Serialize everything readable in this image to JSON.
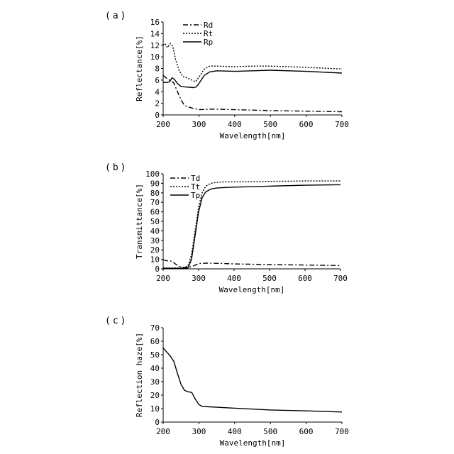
{
  "chart_data": [
    {
      "panel_label": "(a)",
      "type": "line",
      "xlabel": "Wavelength[nm]",
      "ylabel": "Reflectance[%]",
      "xlim": [
        200,
        700
      ],
      "ylim": [
        0,
        16
      ],
      "xticks": [
        200,
        300,
        400,
        500,
        600,
        700
      ],
      "yticks": [
        0,
        2,
        4,
        6,
        8,
        10,
        12,
        14,
        16
      ],
      "grid": false,
      "legend_position": "top-center",
      "series": [
        {
          "name": "Rd",
          "style": "dashdot",
          "x": [
            200,
            210,
            220,
            230,
            240,
            250,
            260,
            280,
            300,
            340,
            400,
            500,
            600,
            700
          ],
          "y": [
            6.8,
            6.3,
            5.9,
            5.5,
            4.0,
            2.6,
            1.6,
            1.2,
            0.9,
            1.0,
            0.9,
            0.75,
            0.65,
            0.55
          ]
        },
        {
          "name": "Rt",
          "style": "dotted",
          "x": [
            200,
            205,
            212,
            220,
            227,
            235,
            245,
            255,
            270,
            290,
            300,
            315,
            330,
            350,
            400,
            450,
            500,
            600,
            700
          ],
          "y": [
            12.0,
            12.3,
            11.6,
            12.3,
            11.8,
            9.5,
            7.6,
            6.6,
            6.3,
            5.7,
            6.5,
            7.9,
            8.4,
            8.4,
            8.3,
            8.4,
            8.4,
            8.2,
            7.9
          ]
        },
        {
          "name": "Rp",
          "style": "solid",
          "x": [
            200,
            210,
            218,
            225,
            232,
            240,
            250,
            265,
            285,
            292,
            300,
            315,
            330,
            350,
            400,
            450,
            500,
            600,
            700
          ],
          "y": [
            5.6,
            5.6,
            5.7,
            6.4,
            6.1,
            5.4,
            4.9,
            4.8,
            4.7,
            4.8,
            5.4,
            6.8,
            7.4,
            7.6,
            7.5,
            7.6,
            7.7,
            7.5,
            7.2
          ]
        }
      ]
    },
    {
      "panel_label": "(b)",
      "type": "line",
      "xlabel": "Wavelength[nm]",
      "ylabel": "Transmittance[%]",
      "xlim": [
        200,
        700
      ],
      "ylim": [
        0,
        100
      ],
      "xticks": [
        200,
        300,
        400,
        500,
        600,
        700
      ],
      "yticks": [
        0,
        10,
        20,
        30,
        40,
        50,
        60,
        70,
        80,
        90,
        100
      ],
      "grid": false,
      "legend_position": "top-left",
      "series": [
        {
          "name": "Td",
          "style": "dashdot",
          "x": [
            200,
            210,
            225,
            235,
            250,
            270,
            285,
            300,
            320,
            350,
            400,
            500,
            600,
            700
          ],
          "y": [
            9.5,
            8.5,
            8.0,
            5.0,
            1.8,
            1.5,
            3.0,
            5.5,
            6.0,
            5.8,
            5.2,
            4.5,
            4.0,
            3.5
          ]
        },
        {
          "name": "Tt",
          "style": "dotted",
          "x": [
            200,
            215,
            230,
            245,
            260,
            270,
            280,
            290,
            300,
            310,
            320,
            335,
            350,
            370,
            400,
            500,
            600,
            700
          ],
          "y": [
            1.0,
            1.0,
            1.0,
            1.0,
            1.5,
            3.0,
            15,
            40,
            65,
            80,
            87,
            90,
            91,
            91.5,
            91.5,
            92,
            92.5,
            92.5
          ]
        },
        {
          "name": "Tp",
          "style": "solid",
          "x": [
            200,
            215,
            230,
            245,
            260,
            270,
            280,
            290,
            300,
            310,
            320,
            335,
            350,
            370,
            400,
            500,
            600,
            700
          ],
          "y": [
            0.5,
            0.5,
            0.5,
            0.5,
            0.5,
            1.0,
            10,
            35,
            60,
            75,
            81,
            84,
            85,
            85.5,
            86,
            87,
            88,
            88.5
          ]
        }
      ]
    },
    {
      "panel_label": "(c)",
      "type": "line",
      "xlabel": "Wavelength[nm]",
      "ylabel": "Reflection haze[%]",
      "xlim": [
        200,
        700
      ],
      "ylim": [
        0,
        70
      ],
      "xticks": [
        200,
        300,
        400,
        500,
        600,
        700
      ],
      "yticks": [
        0,
        10,
        20,
        30,
        40,
        50,
        60,
        70
      ],
      "grid": false,
      "series": [
        {
          "name": "",
          "style": "solid",
          "x": [
            200,
            210,
            220,
            230,
            240,
            250,
            260,
            270,
            280,
            290,
            300,
            310,
            330,
            350,
            400,
            500,
            600,
            700
          ],
          "y": [
            55,
            52,
            49,
            45,
            36,
            28,
            23.5,
            22.5,
            22,
            17,
            13,
            11.5,
            11.3,
            11.0,
            10.3,
            9.0,
            8.3,
            7.5
          ]
        }
      ]
    }
  ]
}
